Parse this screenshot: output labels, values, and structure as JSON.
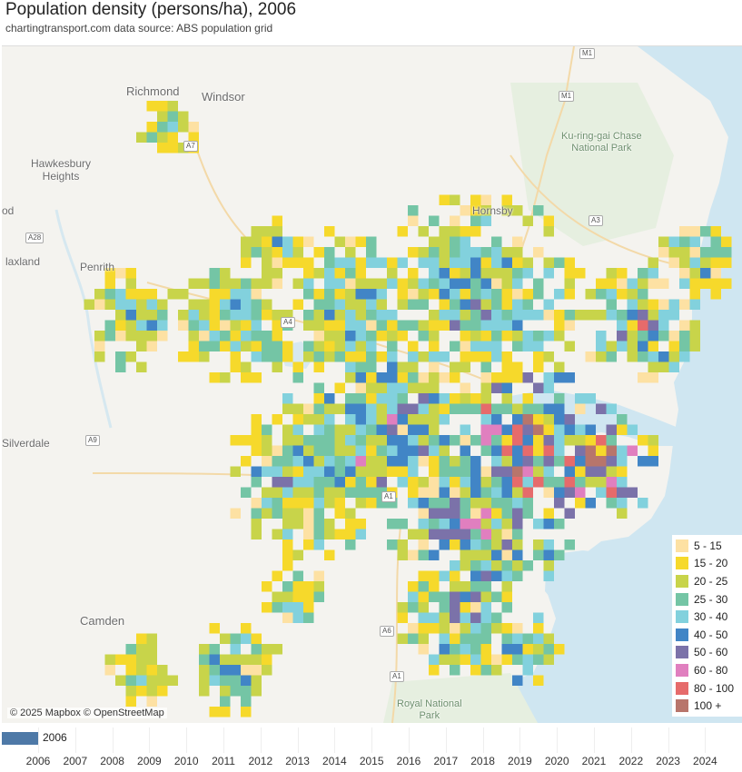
{
  "title": "Population density (persons/ha), 2006",
  "subtitle": "chartingtransport.com  data source: ABS population grid",
  "map": {
    "attribution": "© 2025 Mapbox © OpenStreetMap",
    "places": [
      {
        "id": "richmond",
        "label": "Richmond"
      },
      {
        "id": "windsor",
        "label": "Windsor"
      },
      {
        "id": "hawkesbury",
        "label": "Hawkesbury\nHeights"
      },
      {
        "id": "od",
        "label": "od"
      },
      {
        "id": "laxland",
        "label": "laxland"
      },
      {
        "id": "penrith",
        "label": "Penrith"
      },
      {
        "id": "silverdale",
        "label": "Silverdale"
      },
      {
        "id": "camden",
        "label": "Camden"
      },
      {
        "id": "hornsby",
        "label": "Hornsby"
      },
      {
        "id": "kuringgai",
        "label": "Ku-ring-gai Chase\nNational Park"
      },
      {
        "id": "royalnp",
        "label": "Royal National\nPark"
      }
    ],
    "road_shields": [
      "M1",
      "M1",
      "A7",
      "A3",
      "A4",
      "A9",
      "A6",
      "A1",
      "A1",
      "A28"
    ]
  },
  "legend": {
    "items": [
      {
        "label": "5 - 15",
        "color": "#fde1a3"
      },
      {
        "label": "15 - 20",
        "color": "#f6d92b"
      },
      {
        "label": "20 - 25",
        "color": "#c8d44a"
      },
      {
        "label": "25 - 30",
        "color": "#74c5a5"
      },
      {
        "label": "30 - 40",
        "color": "#82d1dd"
      },
      {
        "label": "40 - 50",
        "color": "#4185c6"
      },
      {
        "label": "50 - 60",
        "color": "#7b72a9"
      },
      {
        "label": "60 - 80",
        "color": "#e07fbf"
      },
      {
        "label": "80 - 100",
        "color": "#e66b6b"
      },
      {
        "label": "100 +",
        "color": "#b8756b"
      }
    ]
  },
  "timeline": {
    "selected": "2006",
    "years": [
      "2006",
      "2007",
      "2008",
      "2009",
      "2010",
      "2011",
      "2012",
      "2013",
      "2014",
      "2015",
      "2016",
      "2017",
      "2018",
      "2019",
      "2020",
      "2021",
      "2022",
      "2023",
      "2024"
    ]
  }
}
